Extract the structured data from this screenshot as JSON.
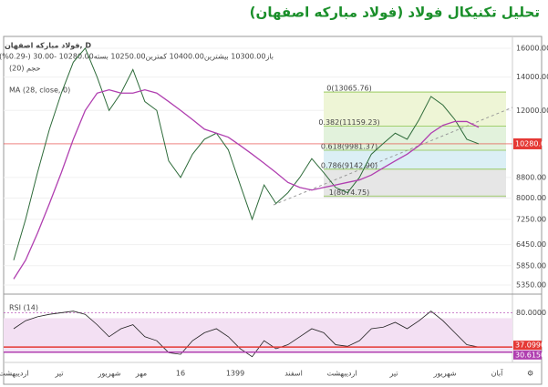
{
  "title": "تحلیل تکنیکال فولاد (فولاد مبارکه اصفهان)",
  "chart_data": {
    "type": "line",
    "log_scale": true,
    "symbol": "فولاد مبارکه اصفهان, D",
    "ohlc": "باز10300.00 بیشترین10400.00 کمترین10250.00 بسته10280.00 -30.00 (-0.29%)",
    "volume_label": "حجم (20)",
    "ma_label": "MA (28, close, 0)",
    "ylim": [
      5150,
      16900
    ],
    "yticks": [
      {
        "value": 16000,
        "label": "16000.00"
      },
      {
        "value": 14000,
        "label": "14000.00"
      },
      {
        "value": 12000,
        "label": "12000.00"
      },
      {
        "value": 8800,
        "label": "8800.00"
      },
      {
        "value": 8000,
        "label": "8000.00"
      },
      {
        "value": 7250,
        "label": "7250.00"
      },
      {
        "value": 6450,
        "label": "6450.00"
      },
      {
        "value": 5850,
        "label": "5850.00"
      },
      {
        "value": 5350,
        "label": "5350.00"
      }
    ],
    "last_price": {
      "value": 10280,
      "label": "10280.00",
      "color": "#e53935"
    },
    "time_labels": [
      "اردیبهشت",
      "تیر",
      "شهریور",
      "مهر",
      "16",
      "1399",
      "اسفند",
      "اردیبهشت",
      "تیر",
      "شهریور",
      "آبان"
    ],
    "series": [
      {
        "name": "price",
        "color": "#2e6b3a",
        "values": [
          6000,
          7250,
          9000,
          11000,
          13000,
          15000,
          16000,
          14000,
          12000,
          13000,
          14500,
          12500,
          12000,
          9500,
          8800,
          9800,
          10500,
          10800,
          10000,
          8500,
          7250,
          8500,
          7800,
          8200,
          8800,
          9600,
          9000,
          8400,
          8200,
          8800,
          9800,
          10300,
          10800,
          10500,
          11500,
          12800,
          12300,
          11500,
          10500,
          10280
        ]
      },
      {
        "name": "MA",
        "color": "#b03fb0",
        "values": [
          5500,
          6000,
          6800,
          7800,
          9000,
          10500,
          12000,
          13000,
          13200,
          13000,
          13000,
          13200,
          13000,
          12500,
          12000,
          11500,
          11000,
          10800,
          10600,
          10200,
          9800,
          9400,
          9000,
          8600,
          8400,
          8300,
          8400,
          8500,
          8600,
          8700,
          8900,
          9200,
          9500,
          9800,
          10200,
          10800,
          11200,
          11400,
          11400,
          11100
        ]
      }
    ],
    "fib": [
      {
        "value": 13065.76,
        "label": "0(13065.76)",
        "color": "#eef5d6"
      },
      {
        "value": 11159.23,
        "label": "0.382(11159.23)",
        "color": "#e2f2dc"
      },
      {
        "value": 9981.37,
        "label": "0.618(9981.37)",
        "color": "#dbeff5"
      },
      {
        "value": 9142.9,
        "label": "0.786(9142.90)",
        "color": "#e6e6e6"
      },
      {
        "value": 8074.75,
        "label": "1(8074.75)",
        "color": "#e6e6e6"
      }
    ],
    "rsi": {
      "label": "RSI (14)",
      "color": "#222",
      "ylim": [
        19,
        101
      ],
      "yticks": [
        {
          "value": 80,
          "label": "80.0000"
        }
      ],
      "values": [
        60,
        70,
        75,
        78,
        80,
        82,
        78,
        65,
        50,
        60,
        65,
        50,
        45,
        30,
        28,
        45,
        55,
        60,
        50,
        35,
        25,
        45,
        35,
        40,
        50,
        60,
        55,
        40,
        38,
        45,
        60,
        62,
        68,
        60,
        70,
        82,
        70,
        55,
        40,
        37
      ],
      "last": [
        {
          "value": 37.099,
          "label": "37.0990"
        },
        {
          "value": 30.615,
          "label": "30.6150"
        }
      ]
    }
  }
}
